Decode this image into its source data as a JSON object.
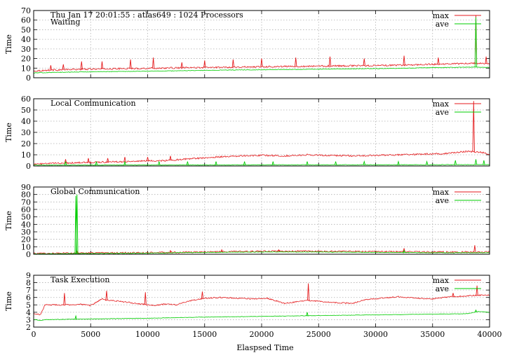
{
  "figure": {
    "xlabel": "Elaspsed Time",
    "x_ticks": [
      "0",
      "5000",
      "10000",
      "15000",
      "20000",
      "25000",
      "30000",
      "35000",
      "40000"
    ]
  },
  "colors": {
    "max": "#e41a1c",
    "ave": "#00cc00",
    "grid": "#b0b0b0"
  },
  "chart_data": [
    {
      "type": "line",
      "title": "Thu Jan 17 20:01:55 : atlas649 : 1024 Processors",
      "subtitle": "Waiting",
      "ylabel": "Time",
      "xlim": [
        0,
        40000
      ],
      "ylim": [
        0,
        70
      ],
      "y_ticks": [
        0,
        10,
        20,
        30,
        40,
        50,
        60,
        70
      ],
      "grid": true,
      "legend": "top-right",
      "series": [
        {
          "name": "max",
          "x": [
            0,
            1500,
            3000,
            5000,
            8000,
            11000,
            14000,
            17000,
            20000,
            24000,
            28000,
            32000,
            35000,
            38500,
            39500,
            40000
          ],
          "values": [
            7,
            8,
            8.5,
            9,
            9.5,
            10,
            10.5,
            11,
            11.5,
            12,
            12.5,
            13,
            14,
            15,
            15,
            14
          ],
          "spikes": [
            [
              1500,
              13
            ],
            [
              2600,
              14
            ],
            [
              4200,
              17
            ],
            [
              6000,
              17
            ],
            [
              8500,
              19
            ],
            [
              10500,
              21
            ],
            [
              13000,
              16
            ],
            [
              15000,
              18
            ],
            [
              17500,
              19
            ],
            [
              20000,
              20
            ],
            [
              23000,
              21
            ],
            [
              26000,
              22
            ],
            [
              29000,
              20
            ],
            [
              32500,
              23
            ],
            [
              35500,
              21
            ],
            [
              38800,
              65
            ],
            [
              39700,
              22
            ]
          ]
        },
        {
          "name": "ave",
          "x": [
            0,
            1500,
            3000,
            5000,
            8000,
            11000,
            14000,
            17000,
            20000,
            24000,
            28000,
            32000,
            35000,
            38500,
            39500,
            40000
          ],
          "values": [
            5,
            5.5,
            5.8,
            6.2,
            6.6,
            7,
            7.5,
            8,
            8.3,
            8.8,
            9.3,
            9.8,
            10.5,
            11,
            11,
            10.5
          ],
          "spikes": [
            [
              38800,
              63
            ]
          ]
        }
      ]
    },
    {
      "type": "line",
      "title": "Local Communication",
      "ylabel": "Time",
      "xlim": [
        0,
        40000
      ],
      "ylim": [
        0,
        60
      ],
      "y_ticks": [
        0,
        10,
        20,
        30,
        40,
        50,
        60
      ],
      "grid": true,
      "legend": "top-right",
      "series": [
        {
          "name": "max",
          "x": [
            0,
            2000,
            4000,
            6000,
            8000,
            10000,
            12000,
            13000,
            14500,
            16000,
            18000,
            20000,
            22000,
            24000,
            26000,
            28000,
            30000,
            32000,
            34000,
            36000,
            38000,
            39500,
            40000
          ],
          "values": [
            1.5,
            2.5,
            3,
            3.5,
            4,
            4.5,
            5,
            6,
            7,
            8,
            9,
            9.5,
            9,
            10,
            9.5,
            9,
            9.5,
            10,
            10.5,
            11,
            13,
            12,
            10
          ],
          "spikes": [
            [
              2800,
              6
            ],
            [
              4800,
              7
            ],
            [
              6500,
              7
            ],
            [
              8000,
              8
            ],
            [
              10000,
              8
            ],
            [
              12000,
              9
            ],
            [
              38600,
              58
            ]
          ]
        },
        {
          "name": "ave",
          "x": [
            0,
            40000
          ],
          "values": [
            0.8,
            1.2
          ],
          "spikes": [
            [
              2800,
              4
            ],
            [
              5500,
              4
            ],
            [
              8000,
              4
            ],
            [
              11000,
              4
            ],
            [
              13500,
              4
            ],
            [
              16000,
              4
            ],
            [
              18500,
              4
            ],
            [
              21000,
              4
            ],
            [
              24000,
              4
            ],
            [
              26500,
              4
            ],
            [
              29000,
              4
            ],
            [
              32000,
              4
            ],
            [
              34500,
              4
            ],
            [
              37000,
              5
            ],
            [
              38800,
              6
            ],
            [
              39500,
              5
            ]
          ]
        }
      ]
    },
    {
      "type": "line",
      "title": "Global Communication",
      "ylabel": "Time",
      "xlim": [
        0,
        40000
      ],
      "ylim": [
        0,
        90
      ],
      "y_ticks": [
        0,
        10,
        20,
        30,
        40,
        50,
        60,
        70,
        80,
        90
      ],
      "grid": true,
      "legend": "top-right",
      "series": [
        {
          "name": "max",
          "x": [
            0,
            5000,
            10000,
            15000,
            20000,
            25000,
            30000,
            35000,
            40000
          ],
          "values": [
            1,
            1.5,
            2,
            3,
            4,
            4,
            3.5,
            3,
            3
          ],
          "spikes": [
            [
              3800,
              4
            ],
            [
              12000,
              5
            ],
            [
              16500,
              6
            ],
            [
              21500,
              6
            ],
            [
              32500,
              8
            ],
            [
              38700,
              12
            ]
          ]
        },
        {
          "name": "ave",
          "x": [
            0,
            5000,
            10000,
            15000,
            20000,
            25000,
            30000,
            35000,
            40000
          ],
          "values": [
            0.5,
            1,
            1.5,
            2.5,
            3,
            3,
            2.5,
            2,
            2
          ],
          "spikes": [
            [
              3700,
              78
            ],
            [
              3800,
              80
            ],
            [
              32500,
              5
            ]
          ]
        }
      ]
    },
    {
      "type": "line",
      "title": "Task Execution",
      "ylabel": "Time",
      "xlim": [
        0,
        40000
      ],
      "ylim": [
        2,
        9
      ],
      "y_ticks": [
        2,
        3,
        4,
        5,
        6,
        7,
        8,
        9
      ],
      "grid": true,
      "legend": "top-right",
      "series": [
        {
          "name": "max",
          "x": [
            0,
            600,
            1000,
            3000,
            4000,
            5000,
            6000,
            6500,
            7500,
            8500,
            9500,
            10500,
            11500,
            12500,
            13500,
            15000,
            16500,
            18000,
            19500,
            20500,
            22000,
            24000,
            25000,
            26500,
            28000,
            29000,
            30500,
            32000,
            33500,
            35000,
            36500,
            38000,
            39000,
            40000
          ],
          "values": [
            3.8,
            3.7,
            5.0,
            5.0,
            5.1,
            4.9,
            5.8,
            5.6,
            5.5,
            5.3,
            5.1,
            4.9,
            5.1,
            5.0,
            5.5,
            5.9,
            6.0,
            5.9,
            5.8,
            5.9,
            5.2,
            5.6,
            5.5,
            5.3,
            5.2,
            5.7,
            5.9,
            6.1,
            5.9,
            5.8,
            6.1,
            6.2,
            6.3,
            6.3
          ],
          "spikes": [
            [
              2700,
              6.6
            ],
            [
              6400,
              6.9
            ],
            [
              9800,
              6.7
            ],
            [
              14800,
              6.8
            ],
            [
              24100,
              7.9
            ],
            [
              36800,
              6.6
            ],
            [
              38900,
              7.6
            ]
          ]
        },
        {
          "name": "ave",
          "x": [
            0,
            600,
            1000,
            5000,
            10000,
            15000,
            20000,
            25000,
            30000,
            35000,
            38000,
            39000,
            40000
          ],
          "values": [
            3.0,
            2.9,
            3.0,
            3.1,
            3.2,
            3.35,
            3.45,
            3.55,
            3.65,
            3.75,
            3.8,
            4.1,
            4.0
          ],
          "spikes": [
            [
              3700,
              3.5
            ],
            [
              24000,
              4.0
            ],
            [
              38800,
              4.3
            ]
          ]
        }
      ]
    }
  ]
}
